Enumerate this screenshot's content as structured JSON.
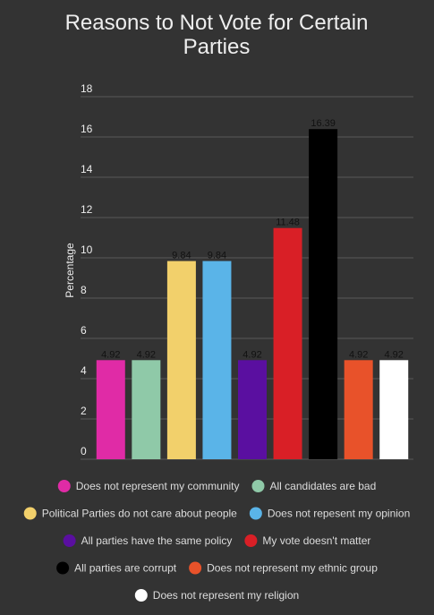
{
  "chart_data": {
    "type": "bar",
    "title": "Reasons to Not Vote for Certain Parties",
    "y_label": "Percentage",
    "categories": [
      "Does not represent my community",
      "All candidates are bad",
      "Political Parties do not care about people",
      "Does not repesent my opinion",
      "All parties have the same policy",
      "My vote doesn't matter",
      "All parties are corrupt",
      "Does not represent my ethnic group",
      "Does not represent my religion"
    ],
    "values": [
      4.92,
      4.92,
      9.84,
      9.84,
      4.92,
      11.48,
      16.39,
      4.92,
      4.92
    ],
    "colors": [
      "#e02ba6",
      "#8fc9a8",
      "#f2d06b",
      "#5ab4e8",
      "#5a0fa0",
      "#d91f26",
      "#000000",
      "#e8522a",
      "#ffffff"
    ],
    "ylim": [
      0,
      18
    ],
    "yticks": [
      0,
      2,
      4,
      6,
      8,
      10,
      12,
      14,
      16,
      18
    ],
    "grid": true,
    "legend": "bottom"
  }
}
